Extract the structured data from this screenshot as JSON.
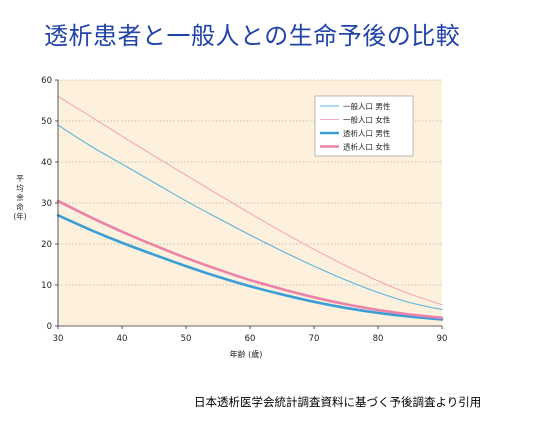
{
  "slide": {
    "title": "透析患者と一般人との生命予後の比較",
    "footnote": "日本透析医学会統計調査資料に基づく予後調査より引用"
  },
  "chart_data": {
    "type": "line",
    "title": "透析患者と一般人との生命予後の比較",
    "xlabel": "年齢 (歳)",
    "ylabel": "平均余命 (年)",
    "ylabel_chars": [
      "平",
      "均",
      "余",
      "命",
      "(年)"
    ],
    "xlim": [
      30,
      90
    ],
    "ylim": [
      0,
      60
    ],
    "xticks": [
      30,
      40,
      50,
      60,
      70,
      80,
      90
    ],
    "yticks": [
      0,
      10,
      20,
      30,
      40,
      50,
      60
    ],
    "grid": "horizontal dotted",
    "legend_position": "top-right",
    "plot_background": "#fdf0dd",
    "series": [
      {
        "name": "一般人口 男性",
        "color": "#5bb4dc",
        "thick": false,
        "x": [
          30,
          35,
          40,
          45,
          50,
          55,
          60,
          65,
          70,
          75,
          80,
          85,
          90
        ],
        "y": [
          49,
          44,
          39.5,
          35,
          30.5,
          26.3,
          22.2,
          18.3,
          14.6,
          11.2,
          8.2,
          5.7,
          4
        ]
      },
      {
        "name": "一般人口 女性",
        "color": "#f2a9bd",
        "thick": false,
        "x": [
          30,
          35,
          40,
          45,
          50,
          55,
          60,
          65,
          70,
          75,
          80,
          85,
          90
        ],
        "y": [
          56,
          51.2,
          46.3,
          41.5,
          36.8,
          32.1,
          27.5,
          23,
          18.7,
          14.7,
          11,
          7.8,
          5.2
        ]
      },
      {
        "name": "透析人口 男性",
        "color": "#3b9fd6",
        "thick": true,
        "x": [
          30,
          35,
          40,
          45,
          50,
          55,
          60,
          65,
          70,
          75,
          80,
          85,
          90
        ],
        "y": [
          27,
          23.5,
          20.3,
          17.4,
          14.6,
          12,
          9.7,
          7.7,
          5.9,
          4.4,
          3.2,
          2.3,
          1.6
        ]
      },
      {
        "name": "透析人口 女性",
        "color": "#ec82a8",
        "thick": true,
        "x": [
          30,
          35,
          40,
          45,
          50,
          55,
          60,
          65,
          70,
          75,
          80,
          85,
          90
        ],
        "y": [
          30.5,
          26.6,
          23,
          19.7,
          16.6,
          13.8,
          11.2,
          9,
          7,
          5.3,
          3.9,
          2.8,
          2
        ]
      }
    ]
  }
}
